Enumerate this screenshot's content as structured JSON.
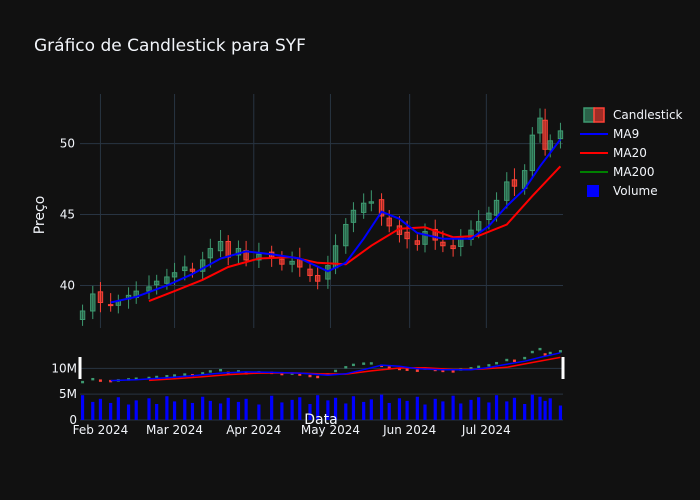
{
  "chart_data": {
    "type": "candlestick",
    "title": "Gráfico de Candlestick para SYF",
    "xlabel": "Data",
    "ylabel": "Preço",
    "grid": true,
    "legend_position": "top-right",
    "x_ticks": [
      "Feb 2024",
      "Mar 2024",
      "Apr 2024",
      "May 2024",
      "Jun 2024",
      "Jul 2024"
    ],
    "y_ticks": [
      40,
      45,
      50
    ],
    "ylim": [
      37,
      53.5
    ],
    "volume_ticks": [
      "0",
      "5M",
      "10M"
    ],
    "volume_ylim": [
      0,
      12000000
    ],
    "x_range": [
      "2024-01-24",
      "2024-07-31"
    ],
    "colors": {
      "increasing": "#3d9970",
      "decreasing": "#ff4136",
      "ma9": "#0000ff",
      "ma20": "#ff0000",
      "ma200": "#008000",
      "volume": "#0000ff",
      "background": "#111111",
      "grid": "#283442"
    },
    "legend": [
      {
        "name": "Candlestick",
        "kind": "candle"
      },
      {
        "name": "MA9",
        "kind": "line",
        "color": "#0000ff"
      },
      {
        "name": "MA20",
        "kind": "line",
        "color": "#ff0000"
      },
      {
        "name": "MA200",
        "kind": "line",
        "color": "#008000"
      },
      {
        "name": "Volume",
        "kind": "box",
        "color": "#0000ff"
      }
    ],
    "close_points": [
      [
        "2024-01-25",
        38.2
      ],
      [
        "2024-01-29",
        39.4
      ],
      [
        "2024-02-01",
        38.8
      ],
      [
        "2024-02-05",
        38.6
      ],
      [
        "2024-02-08",
        38.9
      ],
      [
        "2024-02-12",
        39.3
      ],
      [
        "2024-02-15",
        39.6
      ],
      [
        "2024-02-20",
        39.9
      ],
      [
        "2024-02-23",
        40.3
      ],
      [
        "2024-02-27",
        40.6
      ],
      [
        "2024-03-01",
        40.9
      ],
      [
        "2024-03-05",
        41.3
      ],
      [
        "2024-03-08",
        41.0
      ],
      [
        "2024-03-12",
        41.8
      ],
      [
        "2024-03-15",
        42.6
      ],
      [
        "2024-03-19",
        43.1
      ],
      [
        "2024-03-22",
        42.0
      ],
      [
        "2024-03-26",
        42.6
      ],
      [
        "2024-03-29",
        41.8
      ],
      [
        "2024-04-03",
        42.2
      ],
      [
        "2024-04-08",
        42.0
      ],
      [
        "2024-04-12",
        41.5
      ],
      [
        "2024-04-16",
        41.7
      ],
      [
        "2024-04-19",
        41.3
      ],
      [
        "2024-04-23",
        40.7
      ],
      [
        "2024-04-26",
        40.3
      ],
      [
        "2024-04-30",
        41.4
      ],
      [
        "2024-05-03",
        42.8
      ],
      [
        "2024-05-07",
        44.3
      ],
      [
        "2024-05-10",
        45.3
      ],
      [
        "2024-05-14",
        45.8
      ],
      [
        "2024-05-17",
        45.9
      ],
      [
        "2024-05-21",
        44.9
      ],
      [
        "2024-05-24",
        44.2
      ],
      [
        "2024-05-28",
        43.6
      ],
      [
        "2024-05-31",
        43.3
      ],
      [
        "2024-06-04",
        42.9
      ],
      [
        "2024-06-07",
        43.8
      ],
      [
        "2024-06-11",
        43.2
      ],
      [
        "2024-06-14",
        42.8
      ],
      [
        "2024-06-18",
        42.6
      ],
      [
        "2024-06-21",
        43.4
      ],
      [
        "2024-06-25",
        43.9
      ],
      [
        "2024-06-28",
        44.5
      ],
      [
        "2024-07-02",
        45.1
      ],
      [
        "2024-07-05",
        46.0
      ],
      [
        "2024-07-09",
        47.3
      ],
      [
        "2024-07-12",
        47.0
      ],
      [
        "2024-07-16",
        48.1
      ],
      [
        "2024-07-19",
        50.6
      ],
      [
        "2024-07-22",
        51.8
      ],
      [
        "2024-07-24",
        49.6
      ],
      [
        "2024-07-26",
        50.2
      ],
      [
        "2024-07-30",
        50.9
      ]
    ],
    "ma9_points": [
      [
        "2024-02-05",
        38.8
      ],
      [
        "2024-02-15",
        39.2
      ],
      [
        "2024-02-27",
        40.0
      ],
      [
        "2024-03-08",
        40.8
      ],
      [
        "2024-03-19",
        41.9
      ],
      [
        "2024-03-29",
        42.4
      ],
      [
        "2024-04-08",
        42.2
      ],
      [
        "2024-04-19",
        41.9
      ],
      [
        "2024-04-30",
        41.0
      ],
      [
        "2024-05-07",
        41.6
      ],
      [
        "2024-05-14",
        43.3
      ],
      [
        "2024-05-21",
        45.2
      ],
      [
        "2024-05-28",
        44.7
      ],
      [
        "2024-06-04",
        43.7
      ],
      [
        "2024-06-14",
        43.3
      ],
      [
        "2024-06-25",
        43.3
      ],
      [
        "2024-07-02",
        44.2
      ],
      [
        "2024-07-09",
        45.6
      ],
      [
        "2024-07-16",
        46.8
      ],
      [
        "2024-07-22",
        48.4
      ],
      [
        "2024-07-30",
        50.3
      ]
    ],
    "ma20_points": [
      [
        "2024-02-20",
        38.9
      ],
      [
        "2024-03-01",
        39.6
      ],
      [
        "2024-03-12",
        40.4
      ],
      [
        "2024-03-22",
        41.3
      ],
      [
        "2024-04-03",
        41.9
      ],
      [
        "2024-04-16",
        42.0
      ],
      [
        "2024-04-26",
        41.6
      ],
      [
        "2024-05-07",
        41.5
      ],
      [
        "2024-05-17",
        42.8
      ],
      [
        "2024-05-28",
        44.0
      ],
      [
        "2024-06-07",
        44.1
      ],
      [
        "2024-06-18",
        43.4
      ],
      [
        "2024-06-28",
        43.5
      ],
      [
        "2024-07-09",
        44.3
      ],
      [
        "2024-07-19",
        46.3
      ],
      [
        "2024-07-30",
        48.4
      ]
    ],
    "volume_points": [
      [
        "2024-01-25",
        4800000
      ],
      [
        "2024-01-29",
        3500000
      ],
      [
        "2024-02-01",
        4100000
      ],
      [
        "2024-02-05",
        3300000
      ],
      [
        "2024-02-08",
        4400000
      ],
      [
        "2024-02-12",
        3000000
      ],
      [
        "2024-02-15",
        3800000
      ],
      [
        "2024-02-20",
        4200000
      ],
      [
        "2024-02-23",
        3100000
      ],
      [
        "2024-02-27",
        4600000
      ],
      [
        "2024-03-01",
        3600000
      ],
      [
        "2024-03-05",
        4000000
      ],
      [
        "2024-03-08",
        3300000
      ],
      [
        "2024-03-12",
        4500000
      ],
      [
        "2024-03-15",
        3700000
      ],
      [
        "2024-03-19",
        3200000
      ],
      [
        "2024-03-22",
        4300000
      ],
      [
        "2024-03-26",
        3500000
      ],
      [
        "2024-03-29",
        4100000
      ],
      [
        "2024-04-03",
        3000000
      ],
      [
        "2024-04-08",
        4700000
      ],
      [
        "2024-04-12",
        3400000
      ],
      [
        "2024-04-16",
        3900000
      ],
      [
        "2024-04-19",
        4400000
      ],
      [
        "2024-04-23",
        3100000
      ],
      [
        "2024-04-26",
        4800000
      ],
      [
        "2024-04-30",
        3800000
      ],
      [
        "2024-05-03",
        4300000
      ],
      [
        "2024-05-07",
        3200000
      ],
      [
        "2024-05-10",
        4600000
      ],
      [
        "2024-05-14",
        3500000
      ],
      [
        "2024-05-17",
        4000000
      ],
      [
        "2024-05-21",
        4900000
      ],
      [
        "2024-05-24",
        3300000
      ],
      [
        "2024-05-28",
        4200000
      ],
      [
        "2024-05-31",
        3700000
      ],
      [
        "2024-06-04",
        4500000
      ],
      [
        "2024-06-07",
        3000000
      ],
      [
        "2024-06-11",
        4100000
      ],
      [
        "2024-06-14",
        3600000
      ],
      [
        "2024-06-18",
        4700000
      ],
      [
        "2024-06-21",
        3200000
      ],
      [
        "2024-06-25",
        3900000
      ],
      [
        "2024-06-28",
        4400000
      ],
      [
        "2024-07-02",
        3400000
      ],
      [
        "2024-07-05",
        4800000
      ],
      [
        "2024-07-09",
        3600000
      ],
      [
        "2024-07-12",
        4300000
      ],
      [
        "2024-07-16",
        3100000
      ],
      [
        "2024-07-19",
        4900000
      ],
      [
        "2024-07-22",
        4500000
      ],
      [
        "2024-07-24",
        3700000
      ],
      [
        "2024-07-26",
        4200000
      ],
      [
        "2024-07-30",
        2800000
      ]
    ]
  }
}
